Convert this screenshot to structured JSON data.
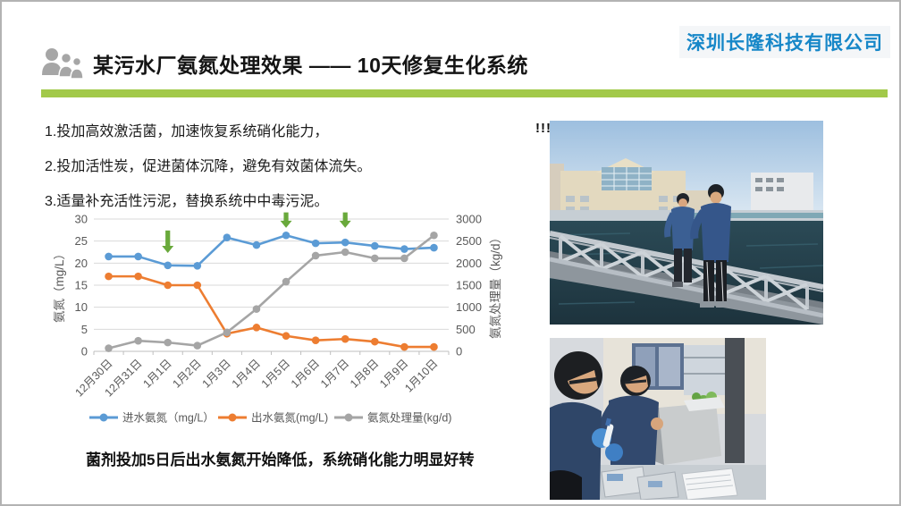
{
  "header": {
    "title": "某污水厂氨氮处理效果 —— 10天修复生化系统",
    "company": "深圳长隆科技有限公司",
    "accent_green": "#a2c94a",
    "company_color": "#1787c8"
  },
  "bullets": [
    "1.投加高效激活菌，加速恢复系统硝化能力，",
    "2.投加活性炭，促进菌体沉降，避免有效菌体流失。",
    "3.适量补充活性污泥，替换系统中中毒污泥。"
  ],
  "chart_data": {
    "type": "line",
    "categories": [
      "12月30日",
      "12月31日",
      "1月1日",
      "1月2日",
      "1月3日",
      "1月4日",
      "1月5日",
      "1月6日",
      "1月7日",
      "1月8日",
      "1月9日",
      "1月10日"
    ],
    "series": [
      {
        "name": "进水氨氮（mg/L）",
        "axis": "left",
        "color": "#5b9bd5",
        "values": [
          21.5,
          21.5,
          19.5,
          19.4,
          25.8,
          24.1,
          26.3,
          24.5,
          24.7,
          23.9,
          23.2,
          23.5
        ]
      },
      {
        "name": "出水氨氮(mg/L)",
        "axis": "left",
        "color": "#ed7d31",
        "values": [
          17,
          17,
          15,
          15,
          4,
          5.4,
          3.5,
          2.5,
          2.8,
          2.2,
          1,
          1
        ]
      },
      {
        "name": "氨氮处理量(kg/d)",
        "axis": "right",
        "color": "#a5a5a5",
        "values": [
          70,
          240,
          200,
          130,
          430,
          960,
          1580,
          2170,
          2250,
          2110,
          2110,
          2630
        ]
      }
    ],
    "left_axis": {
      "title": "氨氮（mg/L）",
      "min": 0,
      "max": 30,
      "step": 5
    },
    "right_axis": {
      "title": "氨氮处理量（kg/d）",
      "min": 0,
      "max": 3000,
      "step": 500
    },
    "annotations": {
      "color": "#69a93b",
      "arrows": [
        {
          "index": 2,
          "from": 27.4,
          "to": 22.3
        },
        {
          "index": 6,
          "from": 31.5,
          "to": 28.0
        },
        {
          "index": 8,
          "from": 31.5,
          "to": 28.0
        }
      ]
    },
    "grid": true,
    "legend_position": "bottom",
    "tick_color": "#595959"
  },
  "caption": "菌剂投加5日后出水氨氮开始降低，系统硝化能力明显好转",
  "photos": {
    "marker": "!!!"
  }
}
